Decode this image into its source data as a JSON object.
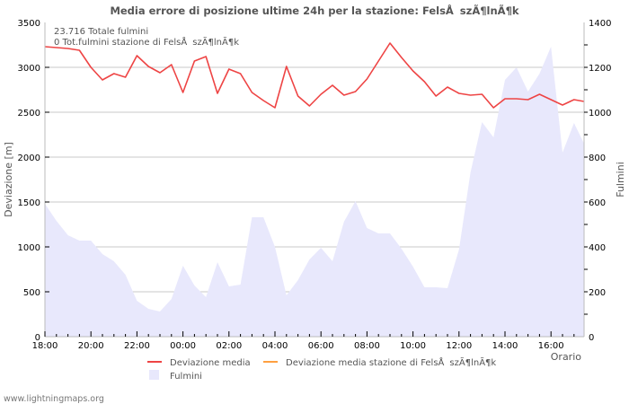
{
  "title": "Media errore di posizione ultime 24h per la stazione: FelsÅszÃ¶lnÃ¶k",
  "info": {
    "total_strikes": "23.716 Totale fulmini",
    "station_strikes": "0 Tot.fulmini stazione di FelsÅszÃ¶lnÃ¶k"
  },
  "footer": "www.lightningmaps.org",
  "colors": {
    "deviation_line": "#ee4444",
    "station_line": "#ffa040",
    "strikes_area": "#e8e8fc",
    "grid": "#c8c8c8",
    "axis": "#bbbbbb"
  },
  "chart_data": {
    "type": "line",
    "title": "Media errore di posizione ultime 24h per la stazione: FelsÅszÃ¶lnÃ¶k",
    "xlabel": "Orario",
    "ylabel": "Deviazione  [m]",
    "y2label": "Fulmini",
    "ylim": [
      0,
      3500
    ],
    "y2lim": [
      0,
      1400
    ],
    "yticks": [
      "0",
      "500",
      "1000",
      "1500",
      "2000",
      "2500",
      "3000",
      "3500"
    ],
    "y2ticks": [
      "0",
      "200",
      "400",
      "600",
      "800",
      "1000",
      "1200",
      "1400"
    ],
    "xticks": [
      "18:00",
      "20:00",
      "22:00",
      "00:00",
      "02:00",
      "04:00",
      "06:00",
      "08:00",
      "10:00",
      "12:00",
      "14:00",
      "16:00"
    ],
    "grid": true,
    "legend_position": "bottom",
    "x": [
      "18:00",
      "18:30",
      "19:00",
      "19:30",
      "20:00",
      "20:30",
      "21:00",
      "21:30",
      "22:00",
      "22:30",
      "23:00",
      "23:30",
      "00:00",
      "00:30",
      "01:00",
      "01:30",
      "02:00",
      "02:30",
      "03:00",
      "03:30",
      "04:00",
      "04:30",
      "05:00",
      "05:30",
      "06:00",
      "06:30",
      "07:00",
      "07:30",
      "08:00",
      "08:30",
      "09:00",
      "09:30",
      "10:00",
      "10:30",
      "11:00",
      "11:30",
      "12:00",
      "12:30",
      "13:00",
      "13:30",
      "14:00",
      "14:30",
      "15:00",
      "15:30",
      "16:00",
      "16:30",
      "17:00",
      "17:30"
    ],
    "series": [
      {
        "name": "Deviazione media",
        "axis": "left",
        "kind": "line",
        "color": "#ee4444",
        "values": [
          3230,
          3220,
          3210,
          3190,
          3000,
          2860,
          2930,
          2890,
          3130,
          3010,
          2940,
          3030,
          2720,
          3070,
          3120,
          2710,
          2980,
          2930,
          2720,
          2630,
          2550,
          3010,
          2680,
          2570,
          2700,
          2800,
          2690,
          2730,
          2870,
          3070,
          3270,
          3110,
          2960,
          2840,
          2680,
          2780,
          2710,
          2690,
          2700,
          2550,
          2650,
          2650,
          2640,
          2700,
          2640,
          2580,
          2640,
          2620
        ]
      },
      {
        "name": "Deviazione media stazione di FelsÅszÃ¶lnÃ¶k",
        "axis": "left",
        "kind": "line",
        "color": "#ffa040",
        "values": []
      },
      {
        "name": "Fulmini",
        "axis": "right",
        "kind": "area",
        "color": "#e8e8fc",
        "values": [
          592,
          516,
          452,
          428,
          428,
          368,
          336,
          276,
          160,
          124,
          112,
          168,
          316,
          228,
          176,
          332,
          224,
          232,
          532,
          532,
          400,
          184,
          252,
          344,
          396,
          336,
          512,
          604,
          484,
          460,
          460,
          392,
          312,
          220,
          220,
          216,
          388,
          732,
          956,
          888,
          1144,
          1200,
          1092,
          1172,
          1292,
          820,
          952,
          860
        ]
      }
    ]
  },
  "legend": {
    "items": [
      {
        "label": "Deviazione media",
        "swatch": "line",
        "color": "#ee4444"
      },
      {
        "label": "Deviazione media stazione di FelsÅszÃ¶lnÃ¶k",
        "swatch": "line",
        "color": "#ffa040"
      },
      {
        "label": "Fulmini",
        "swatch": "box",
        "color": "#e8e8fc"
      }
    ]
  }
}
